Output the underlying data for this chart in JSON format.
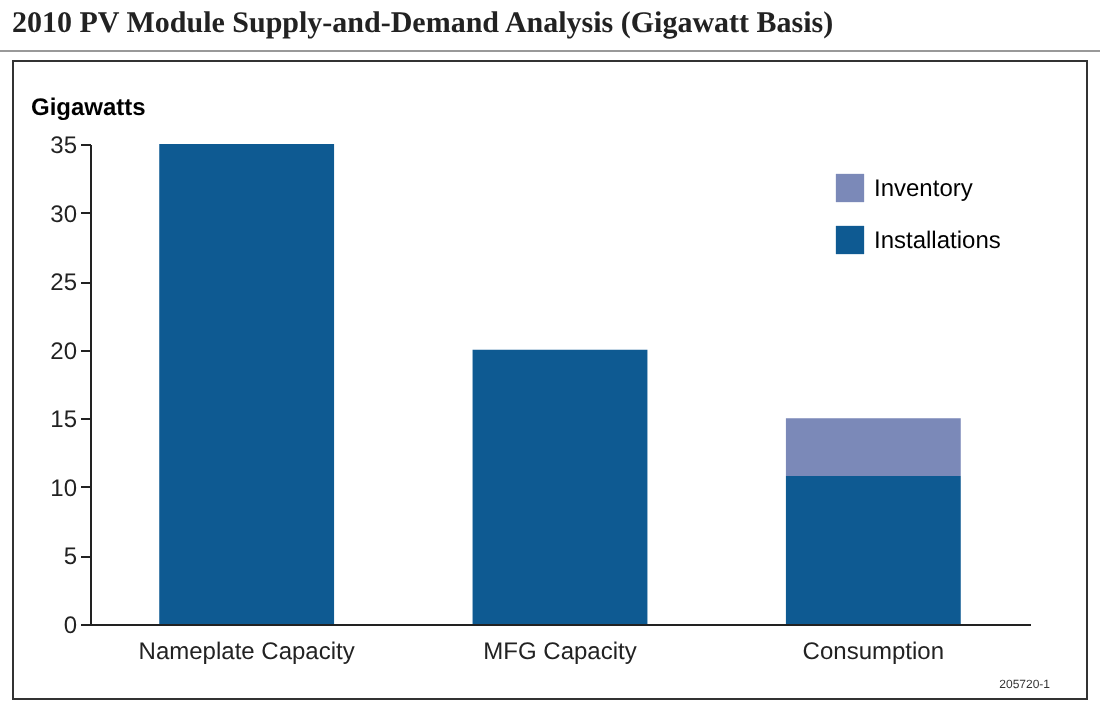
{
  "chart_data": {
    "type": "bar",
    "title": "2010 PV Module Supply-and-Demand Analysis (Gigawatt Basis)",
    "ylabel": "Gigawatts",
    "categories": [
      "Nameplate Capacity",
      "MFG Capacity",
      "Consumption"
    ],
    "stacked": true,
    "series": [
      {
        "name": "Installations",
        "color": "#0e5a92",
        "values": [
          35,
          20,
          10.8
        ]
      },
      {
        "name": "Inventory",
        "color": "#7b89b8",
        "values": [
          null,
          null,
          4.2
        ]
      }
    ],
    "ylim": [
      0,
      35
    ],
    "yticks": [
      0,
      5,
      10,
      15,
      20,
      25,
      30,
      35
    ],
    "grid": false,
    "legend": "top right",
    "annotations": [
      "205720-1"
    ]
  }
}
